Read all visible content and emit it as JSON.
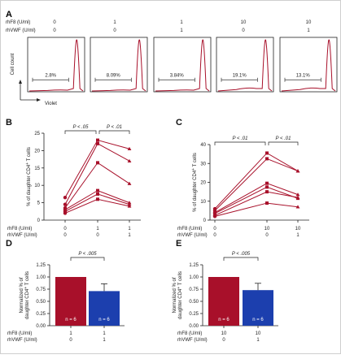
{
  "panel_A": {
    "letter": "A",
    "rows": [
      {
        "label": "rhF8 (U/ml)",
        "values": [
          "0",
          "1",
          "1",
          "10",
          "10"
        ]
      },
      {
        "label": "rhVWF (U/ml)",
        "values": [
          "0",
          "0",
          "1",
          "0",
          "1"
        ]
      }
    ],
    "ylabel": "Cell count",
    "xlabel": "Violet",
    "gate_percents": [
      "2.8%",
      "8.09%",
      "3.84%",
      "19.1%",
      "13.1%"
    ],
    "colors": {
      "histogram": "#a8102a",
      "frame": "#222222"
    }
  },
  "chart_data": [
    {
      "panel": "B",
      "type": "line",
      "ylabel": "% of daughter CD4+ T cells",
      "ylim": [
        0,
        25
      ],
      "yticks": [
        0,
        5,
        10,
        15,
        20,
        25
      ],
      "conditions": [
        {
          "rhF8": "0",
          "rhVWF": "0"
        },
        {
          "rhF8": "1",
          "rhVWF": "0"
        },
        {
          "rhF8": "1",
          "rhVWF": "1"
        }
      ],
      "row_labels": [
        "rhF8 (U/ml)",
        "rhVWF (U/ml)"
      ],
      "series": [
        {
          "values": [
            6.5,
            23.0,
            20.5
          ]
        },
        {
          "values": [
            4.5,
            22.0,
            17.0
          ]
        },
        {
          "values": [
            3.5,
            16.5,
            10.5
          ]
        },
        {
          "values": [
            3.0,
            8.5,
            5.0
          ]
        },
        {
          "values": [
            2.5,
            7.5,
            4.5
          ]
        },
        {
          "values": [
            2.0,
            6.0,
            4.0
          ]
        }
      ],
      "comparisons": [
        {
          "text": "P < .05",
          "from": 0,
          "to": 1
        },
        {
          "text": "P < .01",
          "from": 1,
          "to": 2
        }
      ],
      "color": "#a8102a"
    },
    {
      "panel": "C",
      "type": "line",
      "ylabel": "% of daughter CD4+ T cells",
      "ylim": [
        0,
        40
      ],
      "yticks": [
        0,
        10,
        20,
        30,
        40
      ],
      "conditions": [
        {
          "rhF8": "0",
          "rhVWF": "0"
        },
        {
          "rhF8": "10",
          "rhVWF": "0"
        },
        {
          "rhF8": "10",
          "rhVWF": "1"
        }
      ],
      "row_labels": [
        "rhF8 (U/ml)",
        "rhVWF (U/ml)"
      ],
      "series": [
        {
          "values": [
            6.0,
            35.5,
            26.0
          ]
        },
        {
          "values": [
            5.0,
            32.5,
            26.0
          ]
        },
        {
          "values": [
            4.0,
            19.5,
            13.5
          ]
        },
        {
          "values": [
            3.5,
            17.5,
            11.5
          ]
        },
        {
          "values": [
            2.5,
            15.0,
            12.0
          ]
        },
        {
          "values": [
            2.0,
            9.0,
            7.0
          ]
        }
      ],
      "comparisons": [
        {
          "text": "P < .01",
          "from": 0,
          "to": 1
        },
        {
          "text": "P < .01",
          "from": 1,
          "to": 2
        }
      ],
      "color": "#a8102a"
    },
    {
      "panel": "D",
      "type": "bar",
      "ylabel": "Normalized % of daughter CD4+ T cells",
      "ylim": [
        0,
        1.25
      ],
      "yticks": [
        "0.00",
        "0.25",
        "0.50",
        "0.75",
        "1.00",
        "1.25"
      ],
      "categories": [
        {
          "rhF8": "1",
          "rhVWF": "0"
        },
        {
          "rhF8": "1",
          "rhVWF": "1"
        }
      ],
      "row_labels": [
        "rhF8 (U/ml)",
        "rhVWF (U/ml)"
      ],
      "values": [
        1.0,
        0.71
      ],
      "error": [
        0,
        0.15
      ],
      "n_labels": [
        "n = 6",
        "n = 6"
      ],
      "colors": [
        "#a8102a",
        "#1c3fae"
      ],
      "comparison": "P < .005"
    },
    {
      "panel": "E",
      "type": "bar",
      "ylabel": "Normalized % of daughter CD4+ T cells",
      "ylim": [
        0,
        1.25
      ],
      "yticks": [
        "0.00",
        "0.25",
        "0.50",
        "0.75",
        "1.00",
        "1.25"
      ],
      "categories": [
        {
          "rhF8": "10",
          "rhVWF": "0"
        },
        {
          "rhF8": "10",
          "rhVWF": "1"
        }
      ],
      "row_labels": [
        "rhF8 (U/ml)",
        "rhVWF (U/ml)"
      ],
      "values": [
        1.0,
        0.73
      ],
      "error": [
        0,
        0.14
      ],
      "n_labels": [
        "n = 6",
        "n = 6"
      ],
      "colors": [
        "#a8102a",
        "#1c3fae"
      ],
      "comparison": "P < .005"
    }
  ]
}
